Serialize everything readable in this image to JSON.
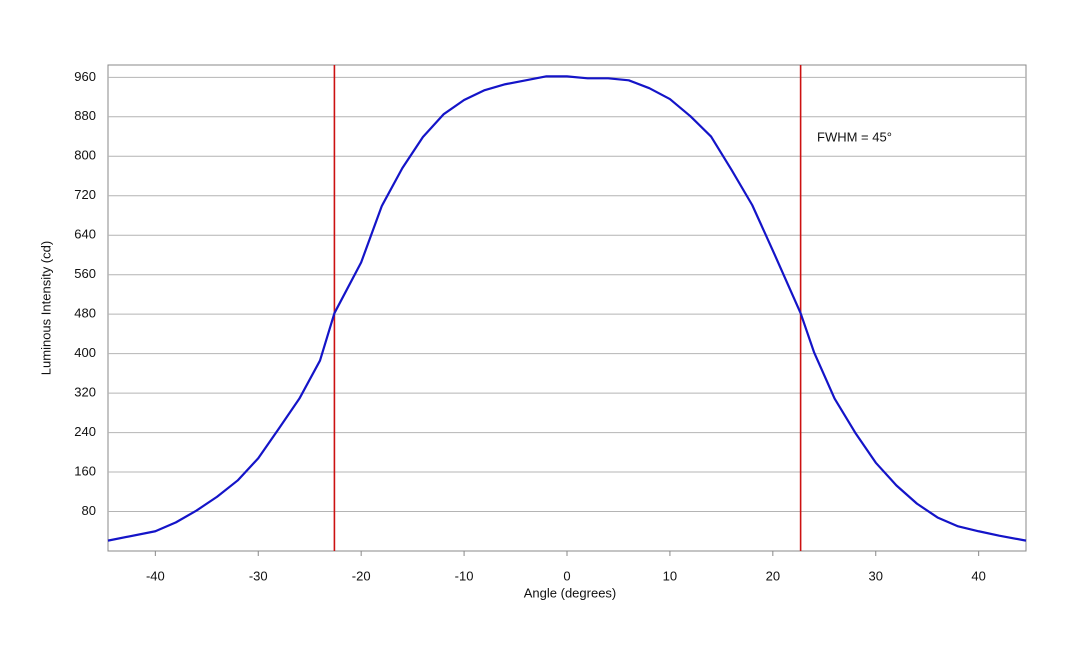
{
  "chart_data": {
    "type": "line",
    "xlabel": "Angle (degrees)",
    "ylabel": "Luminous Intensity (cd)",
    "annotation": "FWHM = 45°",
    "x": [
      -44.6,
      -40,
      -38,
      -36,
      -34,
      -32,
      -30,
      -28,
      -26,
      -24,
      -22.6,
      -20,
      -18,
      -16,
      -14,
      -12,
      -10,
      -8,
      -6,
      -4,
      -2,
      0,
      2,
      4,
      6,
      8,
      10,
      12,
      14,
      16,
      18,
      20,
      22.7,
      24,
      26,
      28,
      30,
      32,
      34,
      36,
      38,
      40,
      42,
      44.6
    ],
    "values": [
      21,
      40,
      58,
      82,
      110,
      143,
      188,
      248,
      309,
      386,
      482,
      585,
      699,
      776,
      839,
      885,
      914,
      934,
      946,
      954,
      962,
      962,
      958,
      958,
      954,
      938,
      916,
      881,
      840,
      772,
      701,
      609,
      482,
      403,
      309,
      240,
      179,
      133,
      96,
      68,
      50,
      40,
      31,
      21
    ],
    "color": "#1414c8",
    "vlines": [
      -22.6,
      22.7
    ],
    "vline_color": "#cc1111",
    "xlim": [
      -44.6,
      44.6
    ],
    "ylim": [
      0,
      985
    ],
    "xticks": [
      -40,
      -30,
      -20,
      -10,
      0,
      10,
      20,
      30,
      40
    ],
    "yticks": [
      80,
      160,
      240,
      320,
      400,
      480,
      560,
      640,
      720,
      800,
      880,
      960
    ],
    "grid": true
  }
}
